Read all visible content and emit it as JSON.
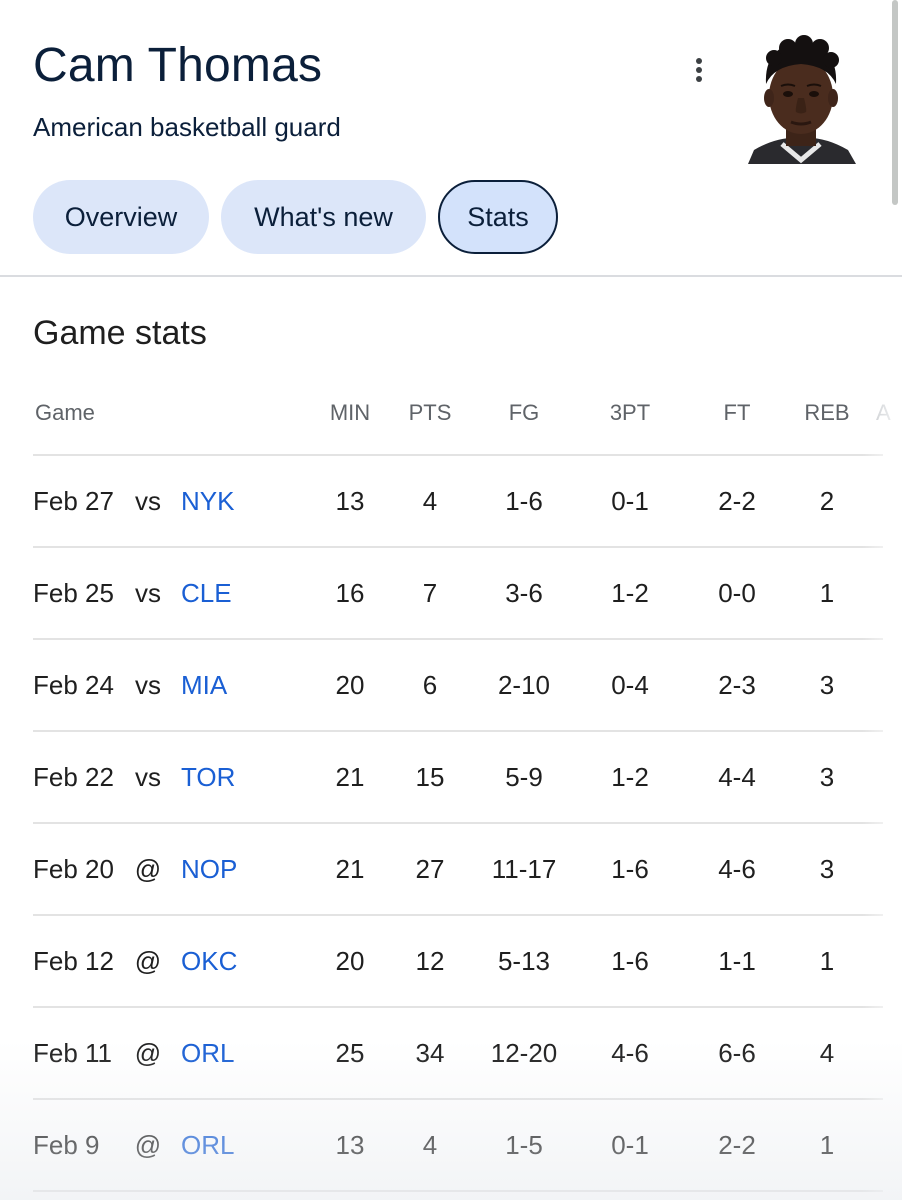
{
  "player": {
    "name": "Cam Thomas",
    "subtitle": "American basketball guard"
  },
  "tabs": [
    {
      "label": "Overview",
      "active": false
    },
    {
      "label": "What's new",
      "active": false
    },
    {
      "label": "Stats",
      "active": true
    }
  ],
  "section": {
    "title": "Game stats"
  },
  "table": {
    "columns": [
      "Game",
      "MIN",
      "PTS",
      "FG",
      "3PT",
      "FT",
      "REB",
      "A"
    ],
    "rows": [
      {
        "date": "Feb 27",
        "loc": "vs",
        "opp": "NYK",
        "min": "13",
        "pts": "4",
        "fg": "1-6",
        "tp": "0-1",
        "ft": "2-2",
        "reb": "2"
      },
      {
        "date": "Feb 25",
        "loc": "vs",
        "opp": "CLE",
        "min": "16",
        "pts": "7",
        "fg": "3-6",
        "tp": "1-2",
        "ft": "0-0",
        "reb": "1"
      },
      {
        "date": "Feb 24",
        "loc": "vs",
        "opp": "MIA",
        "min": "20",
        "pts": "6",
        "fg": "2-10",
        "tp": "0-4",
        "ft": "2-3",
        "reb": "3"
      },
      {
        "date": "Feb 22",
        "loc": "vs",
        "opp": "TOR",
        "min": "21",
        "pts": "15",
        "fg": "5-9",
        "tp": "1-2",
        "ft": "4-4",
        "reb": "3"
      },
      {
        "date": "Feb 20",
        "loc": "@",
        "opp": "NOP",
        "min": "21",
        "pts": "27",
        "fg": "11-17",
        "tp": "1-6",
        "ft": "4-6",
        "reb": "3"
      },
      {
        "date": "Feb 12",
        "loc": "@",
        "opp": "OKC",
        "min": "20",
        "pts": "12",
        "fg": "5-13",
        "tp": "1-6",
        "ft": "1-1",
        "reb": "1"
      },
      {
        "date": "Feb 11",
        "loc": "@",
        "opp": "ORL",
        "min": "25",
        "pts": "34",
        "fg": "12-20",
        "tp": "4-6",
        "ft": "6-6",
        "reb": "4"
      },
      {
        "date": "Feb 9",
        "loc": "@",
        "opp": "ORL",
        "min": "13",
        "pts": "4",
        "fg": "1-5",
        "tp": "0-1",
        "ft": "2-2",
        "reb": "1"
      }
    ]
  },
  "icons": {
    "menu": "more-vert-icon",
    "photo": "player-photo"
  },
  "colors": {
    "title": "#0b1f3a",
    "tab_bg": "#dce6f9",
    "team_link": "#1a5fd4",
    "muted": "#5f6368"
  }
}
